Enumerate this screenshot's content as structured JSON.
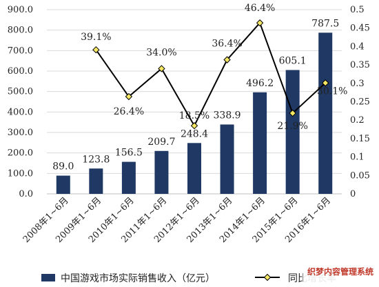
{
  "chart_data": {
    "type": "bar+line",
    "categories": [
      "2008年1~6月",
      "2009年1~6月",
      "2010年1~6月",
      "2011年1~6月",
      "2012年1~6月",
      "2013年1~6月",
      "2014年1~6月",
      "2015年1~6月",
      "2016年1~6月"
    ],
    "series": [
      {
        "name": "中国游戏市场实际销售收入（亿元）",
        "type": "bar",
        "axis": "left",
        "values": [
          89.0,
          123.8,
          156.5,
          209.7,
          248.4,
          338.9,
          496.2,
          605.1,
          787.5
        ],
        "labels": [
          "89.0",
          "123.8",
          "156.5",
          "209.7",
          "248.4",
          "338.9",
          "496.2",
          "605.1",
          "787.5"
        ],
        "color": "#1f3864"
      },
      {
        "name": "同比增长率",
        "type": "line",
        "axis": "right",
        "values": [
          null,
          0.391,
          0.264,
          0.34,
          0.185,
          0.364,
          0.464,
          0.219,
          0.301
        ],
        "labels": [
          "",
          "39.1%",
          "26.4%",
          "34.0%",
          "18.5%",
          "36.4%",
          "46.4%",
          "21.9%",
          "30.1%"
        ],
        "color": "#000000",
        "marker_color": "#f5e663"
      }
    ],
    "y_left": {
      "min": 0,
      "max": 900,
      "step": 100,
      "tick_labels": [
        "0.0",
        "100.0",
        "200.0",
        "300.0",
        "400.0",
        "500.0",
        "600.0",
        "700.0",
        "800.0",
        "900.0"
      ]
    },
    "y_right": {
      "min": 0,
      "max": 0.5,
      "step": 0.05,
      "tick_labels": [
        "0",
        "0.05",
        "0.1",
        "0.15",
        "0.2",
        "0.25",
        "0.3",
        "0.35",
        "0.4",
        "0.45",
        "0.5"
      ]
    },
    "grid": true,
    "legend": "bottom"
  },
  "watermark": "织梦内容管理系统"
}
